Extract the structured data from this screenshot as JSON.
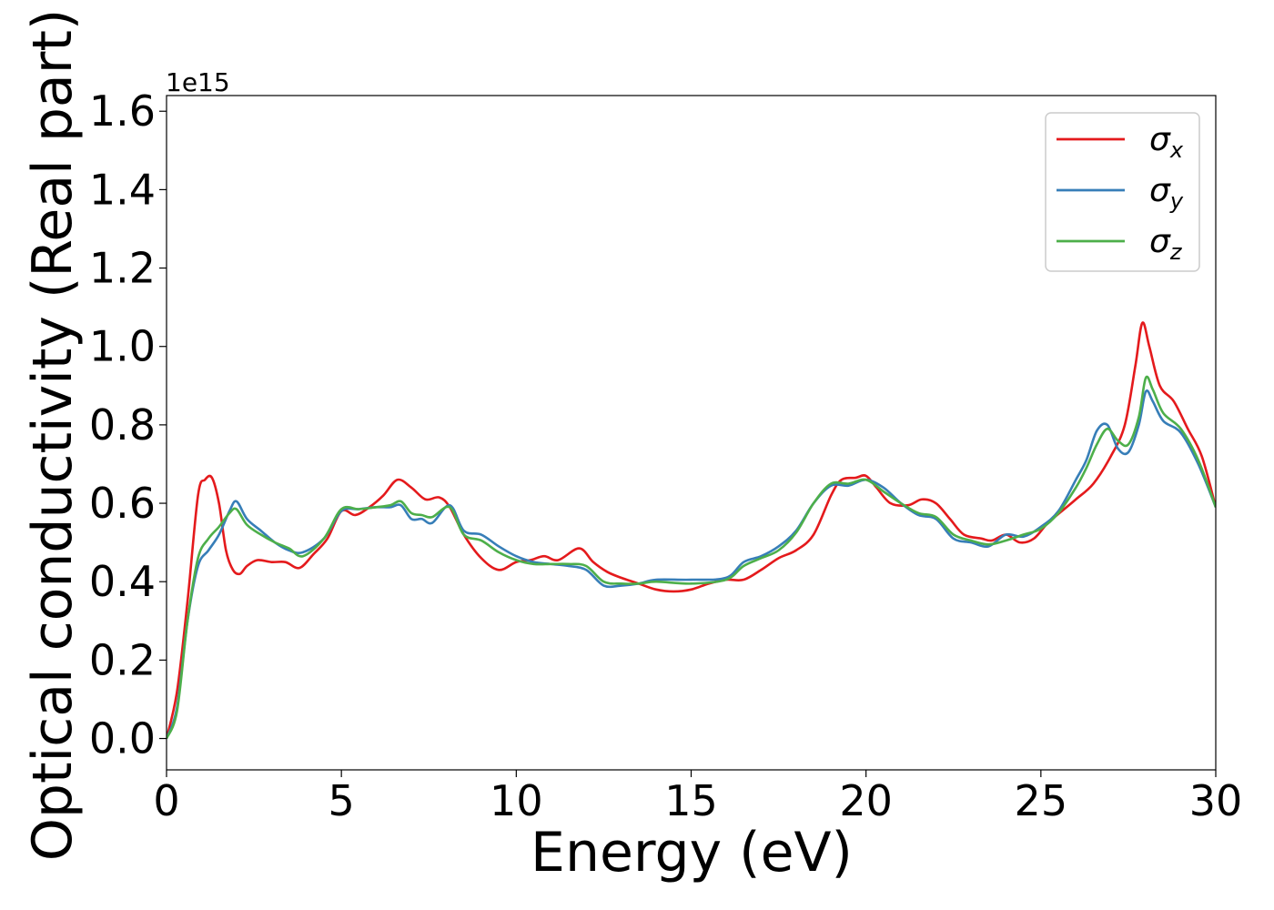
{
  "chart_data": {
    "type": "line",
    "title": "",
    "xlabel": "Energy (eV)",
    "ylabel": "Optical conductivity (Real part)",
    "y_offset_label": "1e15",
    "xlim": [
      0,
      30
    ],
    "ylim": [
      -0.08,
      1.64
    ],
    "x_ticks": [
      "0",
      "5",
      "10",
      "15",
      "20",
      "25",
      "30"
    ],
    "y_ticks": [
      "0.0",
      "0.2",
      "0.4",
      "0.6",
      "0.8",
      "1.0",
      "1.2",
      "1.4",
      "1.6"
    ],
    "grid": false,
    "legend_position": "upper right",
    "series": [
      {
        "name": "σ_x",
        "symbol": "σ",
        "subscript": "x",
        "color": "#e41a1c",
        "x": [
          0,
          0.3,
          0.6,
          0.9,
          1.1,
          1.3,
          1.5,
          1.7,
          1.9,
          2.1,
          2.3,
          2.6,
          3.0,
          3.4,
          3.8,
          4.2,
          4.6,
          5.0,
          5.4,
          5.8,
          6.2,
          6.6,
          7.0,
          7.4,
          7.8,
          8.1,
          8.5,
          9.0,
          9.5,
          10.0,
          10.4,
          10.8,
          11.2,
          11.8,
          12.2,
          12.6,
          13.0,
          13.5,
          14.0,
          14.5,
          15.0,
          15.5,
          16.0,
          16.5,
          17.0,
          17.5,
          18.0,
          18.5,
          19.0,
          19.3,
          19.7,
          20.0,
          20.3,
          20.7,
          21.2,
          21.6,
          22.0,
          22.4,
          22.8,
          23.3,
          23.6,
          24.0,
          24.4,
          24.8,
          25.2,
          25.6,
          26.0,
          26.5,
          27.0,
          27.4,
          27.7,
          27.9,
          28.1,
          28.4,
          28.8,
          29.2,
          29.6,
          30.0
        ],
        "y": [
          0.0,
          0.12,
          0.35,
          0.62,
          0.66,
          0.665,
          0.6,
          0.48,
          0.43,
          0.42,
          0.44,
          0.455,
          0.45,
          0.45,
          0.435,
          0.47,
          0.51,
          0.58,
          0.57,
          0.59,
          0.62,
          0.66,
          0.64,
          0.61,
          0.615,
          0.59,
          0.52,
          0.46,
          0.43,
          0.45,
          0.455,
          0.465,
          0.455,
          0.485,
          0.45,
          0.425,
          0.41,
          0.395,
          0.38,
          0.375,
          0.38,
          0.395,
          0.405,
          0.405,
          0.43,
          0.46,
          0.48,
          0.52,
          0.62,
          0.66,
          0.665,
          0.67,
          0.64,
          0.6,
          0.595,
          0.61,
          0.6,
          0.56,
          0.52,
          0.51,
          0.505,
          0.52,
          0.5,
          0.51,
          0.55,
          0.58,
          0.61,
          0.65,
          0.72,
          0.8,
          0.95,
          1.06,
          1.0,
          0.9,
          0.86,
          0.79,
          0.72,
          0.59
        ]
      },
      {
        "name": "σ_y",
        "symbol": "σ",
        "subscript": "y",
        "color": "#377eb8",
        "x": [
          0,
          0.3,
          0.6,
          0.9,
          1.2,
          1.5,
          1.8,
          2.0,
          2.3,
          2.7,
          3.1,
          3.5,
          3.9,
          4.5,
          5.0,
          5.5,
          6.0,
          6.4,
          6.7,
          7.0,
          7.3,
          7.6,
          8.1,
          8.5,
          9.0,
          9.5,
          10.0,
          10.5,
          11.0,
          11.5,
          12.0,
          12.5,
          13.0,
          13.5,
          14.0,
          15.0,
          16.0,
          16.5,
          17.0,
          17.5,
          18.0,
          18.5,
          19.0,
          19.5,
          20.0,
          20.5,
          21.0,
          21.5,
          22.0,
          22.5,
          23.0,
          23.5,
          24.0,
          24.5,
          25.0,
          25.5,
          26.0,
          26.3,
          26.6,
          26.9,
          27.2,
          27.5,
          27.8,
          28.0,
          28.2,
          28.5,
          29.0,
          29.5,
          30.0
        ],
        "y": [
          0.0,
          0.08,
          0.3,
          0.44,
          0.48,
          0.52,
          0.58,
          0.605,
          0.56,
          0.53,
          0.5,
          0.48,
          0.475,
          0.51,
          0.58,
          0.585,
          0.59,
          0.59,
          0.595,
          0.56,
          0.56,
          0.55,
          0.595,
          0.53,
          0.52,
          0.49,
          0.465,
          0.45,
          0.445,
          0.44,
          0.43,
          0.39,
          0.39,
          0.395,
          0.405,
          0.405,
          0.41,
          0.45,
          0.465,
          0.49,
          0.53,
          0.6,
          0.645,
          0.645,
          0.66,
          0.64,
          0.6,
          0.57,
          0.56,
          0.51,
          0.5,
          0.49,
          0.52,
          0.515,
          0.54,
          0.58,
          0.66,
          0.71,
          0.785,
          0.8,
          0.74,
          0.73,
          0.8,
          0.885,
          0.86,
          0.81,
          0.78,
          0.7,
          0.59
        ]
      },
      {
        "name": "σ_z",
        "symbol": "σ",
        "subscript": "z",
        "color": "#4daf4a",
        "x": [
          0,
          0.3,
          0.6,
          0.9,
          1.2,
          1.5,
          1.8,
          2.0,
          2.3,
          2.7,
          3.1,
          3.5,
          3.9,
          4.5,
          5.0,
          5.5,
          6.0,
          6.4,
          6.7,
          7.0,
          7.3,
          7.6,
          8.1,
          8.5,
          9.0,
          9.5,
          10.0,
          10.5,
          11.0,
          11.5,
          12.0,
          12.5,
          13.0,
          13.5,
          14.0,
          15.0,
          16.0,
          16.5,
          17.0,
          17.5,
          18.0,
          18.5,
          19.0,
          19.5,
          20.0,
          20.5,
          21.0,
          21.5,
          22.0,
          22.5,
          23.0,
          23.5,
          24.0,
          24.5,
          25.0,
          25.5,
          26.0,
          26.3,
          26.6,
          26.9,
          27.2,
          27.5,
          27.8,
          28.0,
          28.2,
          28.5,
          29.0,
          29.5,
          30.0
        ],
        "y": [
          0.0,
          0.07,
          0.3,
          0.46,
          0.51,
          0.54,
          0.575,
          0.585,
          0.545,
          0.52,
          0.5,
          0.485,
          0.465,
          0.51,
          0.585,
          0.585,
          0.59,
          0.595,
          0.605,
          0.575,
          0.57,
          0.565,
          0.59,
          0.52,
          0.505,
          0.475,
          0.455,
          0.445,
          0.445,
          0.445,
          0.44,
          0.4,
          0.395,
          0.395,
          0.4,
          0.395,
          0.405,
          0.44,
          0.46,
          0.48,
          0.525,
          0.6,
          0.65,
          0.65,
          0.66,
          0.63,
          0.6,
          0.575,
          0.565,
          0.52,
          0.505,
          0.495,
          0.505,
          0.52,
          0.535,
          0.575,
          0.64,
          0.69,
          0.75,
          0.79,
          0.76,
          0.75,
          0.82,
          0.92,
          0.89,
          0.83,
          0.79,
          0.71,
          0.59
        ]
      }
    ]
  }
}
